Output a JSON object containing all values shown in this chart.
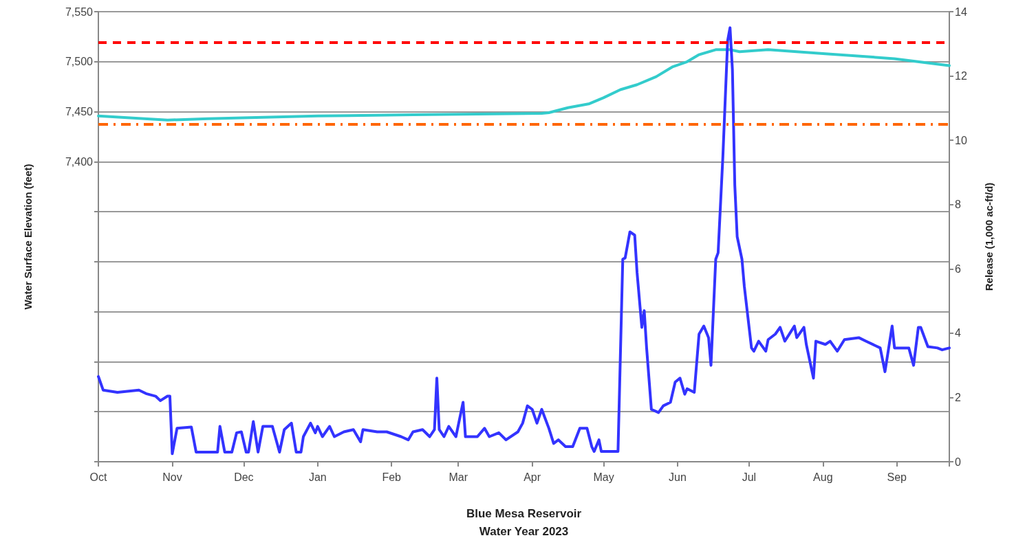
{
  "chart_data": {
    "type": "line",
    "xlabel": "Blue Mesa Reservoir\nWater Year 2023",
    "ylabel": "Water Surface Elevation (feet)",
    "y2label": "Release (1,000 ac-ft/d)",
    "xlim": [
      "2022-10-01",
      "2023-09-23"
    ],
    "xticks": [
      {
        "value": "2022-10-01",
        "label": "Oct"
      },
      {
        "value": "2022-11-01",
        "label": "Nov"
      },
      {
        "value": "2022-12-01",
        "label": "Dec"
      },
      {
        "value": "2023-01-01",
        "label": "Jan"
      },
      {
        "value": "2023-02-01",
        "label": "Feb"
      },
      {
        "value": "2023-03-01",
        "label": "Mar"
      },
      {
        "value": "2023-04-01",
        "label": "Apr"
      },
      {
        "value": "2023-05-01",
        "label": "May"
      },
      {
        "value": "2023-06-01",
        "label": "Jun"
      },
      {
        "value": "2023-07-01",
        "label": "Jul"
      },
      {
        "value": "2023-08-01",
        "label": "Aug"
      },
      {
        "value": "2023-09-01",
        "label": "Sep"
      }
    ],
    "ylim": [
      7100,
      7550
    ],
    "yticks": [
      {
        "value": 7100,
        "label": null
      },
      {
        "value": 7150,
        "label": null
      },
      {
        "value": 7200,
        "label": null
      },
      {
        "value": 7250,
        "label": null
      },
      {
        "value": 7300,
        "label": null
      },
      {
        "value": 7350,
        "label": null
      },
      {
        "value": 7400,
        "label": "7,400"
      },
      {
        "value": 7450,
        "label": "7,450"
      },
      {
        "value": 7500,
        "label": "7,500"
      },
      {
        "value": 7550,
        "label": "7,550"
      }
    ],
    "y2lim": [
      0,
      14
    ],
    "y2ticks": [
      0,
      2,
      4,
      6,
      8,
      10,
      12,
      14
    ],
    "grid": "y",
    "marker": "none",
    "ref_lines": [
      {
        "axis": "y",
        "value": 7519.4,
        "color": "#ff0000",
        "line_style": "dashed"
      },
      {
        "axis": "y",
        "value": 7437.5,
        "color": "#ff6600",
        "line_style": "dashdot"
      }
    ],
    "series": [
      {
        "color": "#33cccc",
        "axis": "y",
        "x": [
          "2022-10-01",
          "2022-10-30",
          "2022-11-16",
          "2023-01-01",
          "2023-02-10",
          "2023-04-05",
          "2023-04-08",
          "2023-04-16",
          "2023-04-25",
          "2023-05-01",
          "2023-05-08",
          "2023-05-15",
          "2023-05-23",
          "2023-05-30",
          "2023-06-05",
          "2023-06-10",
          "2023-06-17",
          "2023-06-23",
          "2023-06-27",
          "2023-07-09",
          "2023-08-02",
          "2023-08-31",
          "2023-09-23"
        ],
        "values": [
          7445.7,
          7441.6,
          7443,
          7445.7,
          7447,
          7448.4,
          7449,
          7454,
          7458,
          7464,
          7472,
          7477,
          7485,
          7495,
          7500,
          7507,
          7512,
          7512,
          7510,
          7512,
          7508,
          7503,
          7496
        ]
      },
      {
        "color": "#3333ff",
        "axis": "y2",
        "x": [
          "2022-10-01",
          "2022-10-03",
          "2022-10-09",
          "2022-10-18",
          "2022-10-21",
          "2022-10-25",
          "2022-10-27",
          "2022-10-30",
          "2022-10-31",
          "2022-11-01",
          "2022-11-03",
          "2022-11-09",
          "2022-11-11",
          "2022-11-20",
          "2022-11-21",
          "2022-11-23",
          "2022-11-26",
          "2022-11-28",
          "2022-11-30",
          "2022-12-02",
          "2022-12-03",
          "2022-12-05",
          "2022-12-07",
          "2022-12-09",
          "2022-12-13",
          "2022-12-16",
          "2022-12-18",
          "2022-12-21",
          "2022-12-23",
          "2022-12-25",
          "2022-12-26",
          "2022-12-29",
          "2022-12-31",
          "2023-01-01",
          "2023-01-03",
          "2023-01-06",
          "2023-01-08",
          "2023-01-12",
          "2023-01-16",
          "2023-01-19",
          "2023-01-20",
          "2023-01-26",
          "2023-01-30",
          "2023-02-05",
          "2023-02-08",
          "2023-02-10",
          "2023-02-14",
          "2023-02-17",
          "2023-02-19",
          "2023-02-20",
          "2023-02-21",
          "2023-02-23",
          "2023-02-25",
          "2023-02-28",
          "2023-03-03",
          "2023-03-04",
          "2023-03-09",
          "2023-03-12",
          "2023-03-14",
          "2023-03-18",
          "2023-03-21",
          "2023-03-26",
          "2023-03-28",
          "2023-03-30",
          "2023-04-01",
          "2023-04-03",
          "2023-04-05",
          "2023-04-08",
          "2023-04-10",
          "2023-04-12",
          "2023-04-15",
          "2023-04-18",
          "2023-04-21",
          "2023-04-24",
          "2023-04-26",
          "2023-04-27",
          "2023-04-29",
          "2023-04-30",
          "2023-05-07",
          "2023-05-09",
          "2023-05-10",
          "2023-05-12",
          "2023-05-14",
          "2023-05-15",
          "2023-05-17",
          "2023-05-18",
          "2023-05-19",
          "2023-05-21",
          "2023-05-24",
          "2023-05-26",
          "2023-05-29",
          "2023-05-31",
          "2023-06-02",
          "2023-06-04",
          "2023-06-05",
          "2023-06-08",
          "2023-06-10",
          "2023-06-12",
          "2023-06-14",
          "2023-06-15",
          "2023-06-17",
          "2023-06-18",
          "2023-06-20",
          "2023-06-22",
          "2023-06-23",
          "2023-06-24",
          "2023-06-25",
          "2023-06-26",
          "2023-06-28",
          "2023-06-29",
          "2023-07-02",
          "2023-07-03",
          "2023-07-05",
          "2023-07-08",
          "2023-07-09",
          "2023-07-12",
          "2023-07-14",
          "2023-07-16",
          "2023-07-20",
          "2023-07-21",
          "2023-07-24",
          "2023-07-25",
          "2023-07-28",
          "2023-07-29",
          "2023-08-02",
          "2023-08-04",
          "2023-08-07",
          "2023-08-10",
          "2023-08-16",
          "2023-08-19",
          "2023-08-25",
          "2023-08-27",
          "2023-08-30",
          "2023-08-31",
          "2023-09-06",
          "2023-09-08",
          "2023-09-10",
          "2023-09-11",
          "2023-09-14",
          "2023-09-18",
          "2023-09-20",
          "2023-09-23"
        ],
        "values": [
          2.65,
          2.23,
          2.16,
          2.23,
          2.12,
          2.04,
          1.9,
          2.04,
          2.04,
          0.25,
          1.04,
          1.08,
          0.3,
          0.3,
          1.1,
          0.3,
          0.3,
          0.9,
          0.93,
          0.3,
          0.3,
          1.25,
          0.3,
          1.1,
          1.1,
          0.3,
          1.0,
          1.2,
          0.3,
          0.3,
          0.78,
          1.2,
          0.9,
          1.1,
          0.78,
          1.1,
          0.78,
          0.93,
          1.0,
          0.62,
          1.0,
          0.93,
          0.93,
          0.78,
          0.68,
          0.93,
          1.0,
          0.78,
          1.0,
          2.6,
          1.0,
          0.78,
          1.1,
          0.78,
          1.85,
          0.78,
          0.78,
          1.04,
          0.78,
          0.9,
          0.68,
          0.93,
          1.2,
          1.74,
          1.63,
          1.2,
          1.63,
          1.04,
          0.57,
          0.68,
          0.47,
          0.47,
          1.04,
          1.04,
          0.47,
          0.32,
          0.68,
          0.32,
          0.32,
          6.3,
          6.34,
          7.15,
          7.05,
          5.88,
          4.18,
          4.7,
          3.54,
          1.63,
          1.53,
          1.74,
          1.85,
          2.48,
          2.6,
          2.1,
          2.27,
          2.16,
          3.97,
          4.22,
          3.86,
          3.0,
          6.3,
          6.5,
          9.5,
          13.1,
          13.5,
          12.2,
          8.6,
          7.0,
          6.3,
          5.45,
          3.54,
          3.44,
          3.75,
          3.44,
          3.8,
          3.97,
          4.18,
          3.75,
          4.22,
          3.86,
          4.18,
          3.65,
          2.6,
          3.75,
          3.65,
          3.75,
          3.44,
          3.8,
          3.86,
          3.75,
          3.54,
          2.8,
          4.22,
          3.54,
          3.54,
          3.0,
          4.18,
          4.18,
          3.58,
          3.54,
          3.48,
          3.54
        ]
      }
    ]
  }
}
